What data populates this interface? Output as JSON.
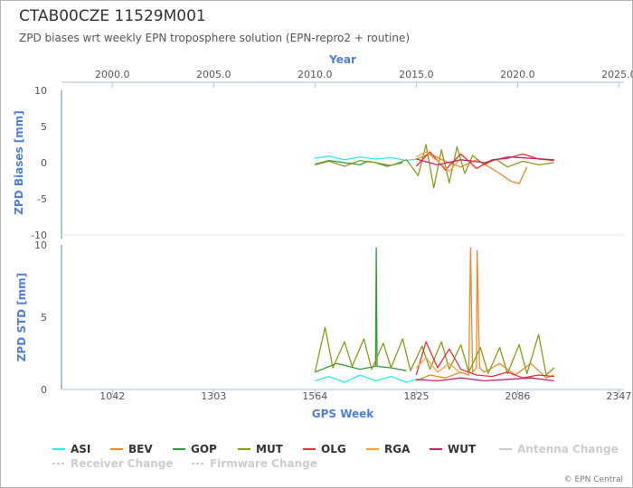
{
  "header": {
    "title": "CTAB00CZE 11529M001",
    "subtitle": "ZPD biases wrt weekly EPN troposphere solution (EPN-repro2 + routine)"
  },
  "credit": "© EPN Central",
  "chart_data": [
    {
      "type": "line",
      "name": "bias",
      "ylabel": "ZPD Biases [mm]",
      "top_axis_title": "Year",
      "ylim": [
        -10,
        10
      ],
      "yticks": [
        "10",
        "5",
        "0",
        "-5",
        "-10"
      ],
      "year_ticks": [
        "2000.0",
        "2005.0",
        "2010.0",
        "2015.0",
        "2020.0",
        "2025.0"
      ],
      "year_tick_weeks": [
        1042,
        1303,
        1564,
        1825,
        2086,
        2347
      ],
      "series": [
        {
          "name": "ASI",
          "x": [
            1564,
            1600,
            1640,
            1680,
            1720,
            1760,
            1800,
            1825
          ],
          "y": [
            0.6,
            0.9,
            0.4,
            0.8,
            0.5,
            0.7,
            0.3,
            0.5
          ]
        },
        {
          "name": "BEV",
          "x": [
            1825,
            1860,
            1900,
            1940,
            1980,
            2010,
            2040,
            2070,
            2090,
            2110
          ],
          "y": [
            0.5,
            1.2,
            0.2,
            -0.6,
            0.4,
            -0.5,
            -1.5,
            -2.6,
            -2.9,
            -0.6
          ]
        },
        {
          "name": "GOP",
          "x": [
            1564,
            1600,
            1640,
            1680,
            1700,
            1720,
            1750,
            1790
          ],
          "y": [
            -0.2,
            0.3,
            0.0,
            -0.3,
            0.2,
            0.0,
            -0.5,
            0.0
          ]
        },
        {
          "name": "MUT",
          "x": [
            1564,
            1600,
            1640,
            1680,
            1720,
            1760,
            1800,
            1830,
            1850,
            1870,
            1890,
            1910,
            1930,
            1950,
            1970,
            2000,
            2030,
            2060,
            2100,
            2140,
            2180
          ],
          "y": [
            -0.3,
            0.2,
            -0.5,
            0.3,
            0.0,
            -0.4,
            0.4,
            -1.8,
            2.5,
            -3.5,
            1.8,
            -2.8,
            2.2,
            -1.5,
            1.0,
            -0.3,
            0.5,
            -0.6,
            0.2,
            -0.3,
            0.0
          ]
        },
        {
          "name": "OLG",
          "x": [
            1825,
            1860,
            1900,
            1940,
            1980,
            2020,
            2060,
            2100,
            2140,
            2180
          ],
          "y": [
            -0.5,
            1.5,
            -1.0,
            1.2,
            -0.8,
            0.4,
            0.6,
            1.2,
            0.5,
            0.3
          ]
        },
        {
          "name": "RGA",
          "x": [
            1825,
            1850,
            1880,
            1910,
            1940
          ],
          "y": [
            0.8,
            1.5,
            0.2,
            -1.2,
            0.6
          ]
        },
        {
          "name": "WUT",
          "x": [
            1825,
            1880,
            1940,
            2000,
            2060,
            2120,
            2180
          ],
          "y": [
            0.5,
            -0.3,
            0.4,
            0.0,
            0.8,
            0.6,
            0.4
          ]
        }
      ]
    },
    {
      "type": "line",
      "name": "std",
      "ylabel": "ZPD STD [mm]",
      "xlabel": "GPS Week",
      "ylim": [
        0,
        10
      ],
      "yticks": [
        "10",
        "5",
        "0"
      ],
      "xticks": [
        "1042",
        "1303",
        "1564",
        "1825",
        "2086",
        "2347"
      ],
      "xlim": [
        911,
        2360
      ],
      "series": [
        {
          "name": "ASI",
          "x": [
            1564,
            1600,
            1640,
            1680,
            1720,
            1760,
            1800,
            1825
          ],
          "y": [
            0.6,
            0.9,
            0.5,
            1.0,
            0.6,
            0.9,
            0.5,
            0.7
          ]
        },
        {
          "name": "BEV",
          "x": [
            1825,
            1860,
            1900,
            1940,
            1960,
            1965,
            1970,
            1980,
            1982,
            1988,
            2000,
            2040,
            2080,
            2120,
            2160,
            2180
          ],
          "y": [
            0.6,
            1.0,
            0.8,
            1.2,
            1.0,
            9.8,
            1.2,
            1.5,
            9.6,
            1.5,
            1.2,
            1.8,
            1.0,
            1.8,
            0.8,
            1.0
          ]
        },
        {
          "name": "GOP",
          "x": [
            1564,
            1620,
            1680,
            1720,
            1722,
            1724,
            1760,
            1800
          ],
          "y": [
            1.2,
            1.8,
            1.4,
            1.6,
            9.8,
            1.6,
            1.5,
            1.3
          ]
        },
        {
          "name": "MUT",
          "x": [
            1564,
            1590,
            1610,
            1640,
            1660,
            1690,
            1710,
            1740,
            1760,
            1790,
            1810,
            1840,
            1860,
            1890,
            1910,
            1940,
            1960,
            1990,
            2010,
            2040,
            2060,
            2090,
            2110,
            2140,
            2160,
            2180
          ],
          "y": [
            1.2,
            4.3,
            1.5,
            3.3,
            1.6,
            3.5,
            1.4,
            3.2,
            1.5,
            3.5,
            1.3,
            3.0,
            1.4,
            3.3,
            1.4,
            3.1,
            1.2,
            2.9,
            1.1,
            2.9,
            1.1,
            3.1,
            1.1,
            3.8,
            1.0,
            1.5
          ]
        },
        {
          "name": "OLG",
          "x": [
            1825,
            1850,
            1880,
            1910,
            1940,
            1980,
            2020,
            2060,
            2100,
            2140,
            2180
          ],
          "y": [
            1.0,
            3.3,
            1.5,
            2.8,
            1.4,
            1.0,
            0.9,
            1.2,
            0.8,
            1.0,
            0.9
          ]
        },
        {
          "name": "RGA",
          "x": [
            1825,
            1850,
            1880,
            1910,
            1940
          ],
          "y": [
            1.5,
            2.2,
            1.2,
            1.8,
            1.1
          ]
        },
        {
          "name": "WUT",
          "x": [
            1825,
            1880,
            1940,
            2000,
            2060,
            2120,
            2180
          ],
          "y": [
            0.7,
            0.6,
            0.8,
            0.6,
            0.7,
            0.8,
            0.6
          ]
        }
      ]
    }
  ],
  "legend": [
    {
      "name": "ASI",
      "color": "#34e8ee",
      "dashed": false,
      "muted": false
    },
    {
      "name": "BEV",
      "color": "#f0882a",
      "dashed": false,
      "muted": false
    },
    {
      "name": "GOP",
      "color": "#2e9d36",
      "dashed": false,
      "muted": false
    },
    {
      "name": "MUT",
      "color": "#8c9a1a",
      "dashed": false,
      "muted": false
    },
    {
      "name": "OLG",
      "color": "#ee2f33",
      "dashed": false,
      "muted": false
    },
    {
      "name": "RGA",
      "color": "#f4a63e",
      "dashed": false,
      "muted": false
    },
    {
      "name": "WUT",
      "color": "#c2276e",
      "dashed": false,
      "muted": false
    },
    {
      "name": "Antenna Change",
      "color": "#cccccc",
      "dashed": false,
      "muted": true
    },
    {
      "name": "Receiver Change",
      "color": "#cccccc",
      "dashed": true,
      "muted": true
    },
    {
      "name": "Firmware Change",
      "color": "#cccccc",
      "dashed": true,
      "muted": true
    }
  ],
  "colors": {
    "axis_title": "#4f7fd9",
    "axis_line": "#aebfd0",
    "tick_text": "#555555"
  }
}
